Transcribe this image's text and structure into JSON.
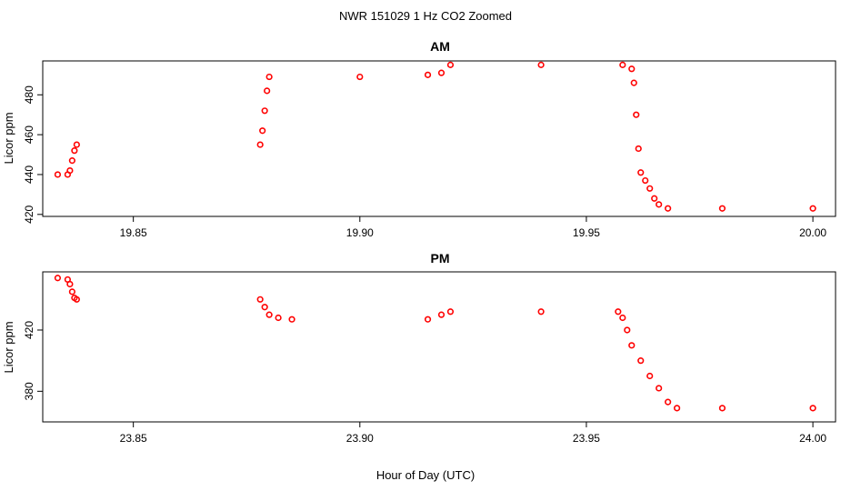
{
  "figure": {
    "title": "NWR  151029  1 Hz CO2 Zoomed",
    "xlabel": "Hour of Day (UTC)"
  },
  "chart_data": [
    {
      "type": "scatter",
      "title": "AM",
      "xlabel": "",
      "ylabel": "Licor ppm",
      "xlim": [
        19.83,
        20.005
      ],
      "ylim": [
        419,
        497
      ],
      "xticks": [
        "19.85",
        "19.90",
        "19.95",
        "20.00"
      ],
      "xtick_values": [
        19.85,
        19.9,
        19.95,
        20.0
      ],
      "yticks": [
        "420",
        "440",
        "460",
        "480"
      ],
      "ytick_values": [
        420,
        440,
        460,
        480
      ],
      "marker": "open-circle",
      "color": "#ff0000",
      "series": [
        {
          "x": [
            19.8333,
            19.8355,
            19.836,
            19.8365,
            19.837,
            19.8375,
            19.878,
            19.8785,
            19.879,
            19.8795,
            19.88,
            19.9,
            19.915,
            19.918,
            19.92,
            19.94,
            19.958,
            19.96,
            19.9605,
            19.961,
            19.9615,
            19.962,
            19.963,
            19.964,
            19.965,
            19.966,
            19.968,
            19.98,
            20.0
          ],
          "y": [
            440,
            440,
            442,
            447,
            452,
            455,
            455,
            462,
            472,
            482,
            489,
            489,
            490,
            491,
            495,
            495,
            495,
            493,
            486,
            470,
            453,
            441,
            437,
            433,
            428,
            425,
            423,
            423,
            423
          ]
        }
      ]
    },
    {
      "type": "scatter",
      "title": "PM",
      "xlabel": "",
      "ylabel": "Licor ppm",
      "xlim": [
        23.83,
        24.005
      ],
      "ylim": [
        360,
        458
      ],
      "xticks": [
        "23.85",
        "23.90",
        "23.95",
        "24.00"
      ],
      "xtick_values": [
        23.85,
        23.9,
        23.95,
        24.0
      ],
      "yticks": [
        "380",
        "420"
      ],
      "ytick_values": [
        380,
        420
      ],
      "marker": "open-circle",
      "color": "#ff0000",
      "series": [
        {
          "x": [
            23.8333,
            23.8355,
            23.836,
            23.8365,
            23.837,
            23.8375,
            23.878,
            23.879,
            23.88,
            23.882,
            23.885,
            23.915,
            23.918,
            23.92,
            23.94,
            23.957,
            23.958,
            23.959,
            23.96,
            23.962,
            23.964,
            23.966,
            23.968,
            23.97,
            23.98,
            24.0
          ],
          "y": [
            454,
            453,
            450,
            445,
            441,
            440,
            440,
            435,
            430,
            428,
            427,
            427,
            430,
            432,
            432,
            432,
            428,
            420,
            410,
            400,
            390,
            382,
            373,
            369,
            369,
            369
          ]
        }
      ]
    }
  ]
}
